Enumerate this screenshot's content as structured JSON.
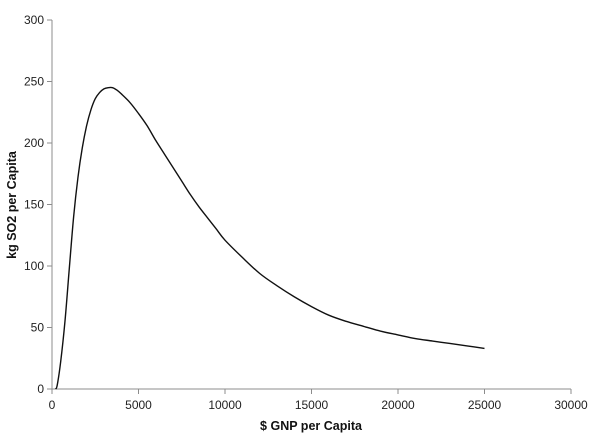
{
  "chart_data": {
    "type": "line",
    "xlabel": "$ GNP per Capita",
    "ylabel": "kg SO2 per Capita",
    "xlim": [
      0,
      30000
    ],
    "ylim": [
      0,
      300
    ],
    "x_ticks": [
      0,
      5000,
      10000,
      15000,
      20000,
      25000,
      30000
    ],
    "y_ticks": [
      0,
      50,
      100,
      150,
      200,
      250,
      300
    ],
    "grid": false,
    "series": [
      {
        "color": "#111111",
        "x": [
          200,
          300,
          500,
          750,
          1000,
          1250,
          1500,
          1750,
          2000,
          2250,
          2500,
          2750,
          3000,
          3250,
          3500,
          3750,
          4000,
          4500,
          5000,
          5500,
          6000,
          6500,
          7000,
          7500,
          8000,
          8500,
          9000,
          9500,
          10000,
          11000,
          12000,
          13000,
          14000,
          15000,
          16000,
          17000,
          18000,
          19000,
          20000,
          21000,
          22000,
          23000,
          24000,
          25000
        ],
        "y": [
          0,
          3,
          22,
          55,
          98,
          140,
          172,
          196,
          214,
          227,
          236,
          241,
          244,
          245,
          245,
          243,
          240,
          233,
          224,
          214,
          202,
          191,
          180,
          169,
          158,
          148,
          139,
          130,
          121,
          107,
          94,
          84,
          75,
          67,
          60,
          55,
          51,
          47,
          44,
          41,
          39,
          37,
          35,
          33
        ]
      }
    ]
  }
}
